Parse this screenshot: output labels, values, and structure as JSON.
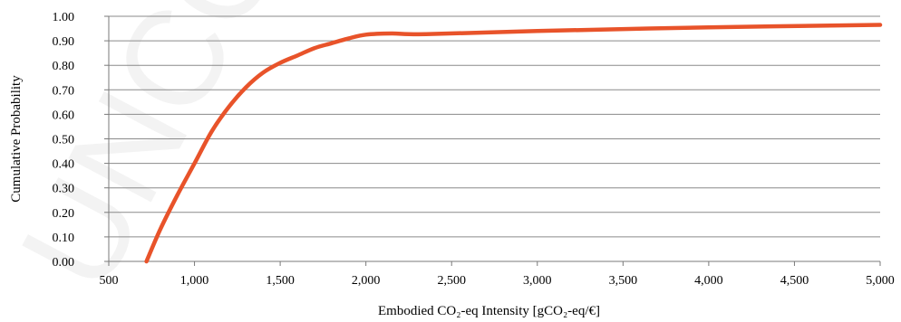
{
  "watermark": {
    "text": "UNCO"
  },
  "chart_data": {
    "type": "line",
    "xlabel": "Embodied CO₂-eq Intensity [gCO₂-eq/€]",
    "ylabel": "Cumulative Probability",
    "xlim": [
      500,
      5000
    ],
    "ylim": [
      0,
      1
    ],
    "x_ticks": [
      500,
      1000,
      1500,
      2000,
      2500,
      3000,
      3500,
      4000,
      4500,
      5000
    ],
    "x_tick_labels": [
      "500",
      "1,000",
      "1,500",
      "2,000",
      "2,500",
      "3,000",
      "3,500",
      "4,000",
      "4,500",
      "5,000"
    ],
    "y_ticks": [
      0,
      0.1,
      0.2,
      0.3,
      0.4,
      0.5,
      0.6,
      0.7,
      0.8,
      0.9,
      1.0
    ],
    "y_tick_labels": [
      "0.00",
      "0.10",
      "0.20",
      "0.30",
      "0.40",
      "0.50",
      "0.60",
      "0.70",
      "0.80",
      "0.90",
      "1.00"
    ],
    "grid": true,
    "legend": "none",
    "series": [
      {
        "color": "#e8532a",
        "points": [
          [
            720,
            0.0
          ],
          [
            800,
            0.13
          ],
          [
            900,
            0.27
          ],
          [
            1000,
            0.4
          ],
          [
            1100,
            0.53
          ],
          [
            1200,
            0.63
          ],
          [
            1300,
            0.71
          ],
          [
            1400,
            0.77
          ],
          [
            1500,
            0.81
          ],
          [
            1600,
            0.84
          ],
          [
            1700,
            0.87
          ],
          [
            1800,
            0.89
          ],
          [
            1900,
            0.91
          ],
          [
            2000,
            0.925
          ],
          [
            2150,
            0.93
          ],
          [
            2350,
            0.927
          ],
          [
            3000,
            0.94
          ],
          [
            4000,
            0.955
          ],
          [
            5000,
            0.965
          ]
        ]
      }
    ]
  }
}
